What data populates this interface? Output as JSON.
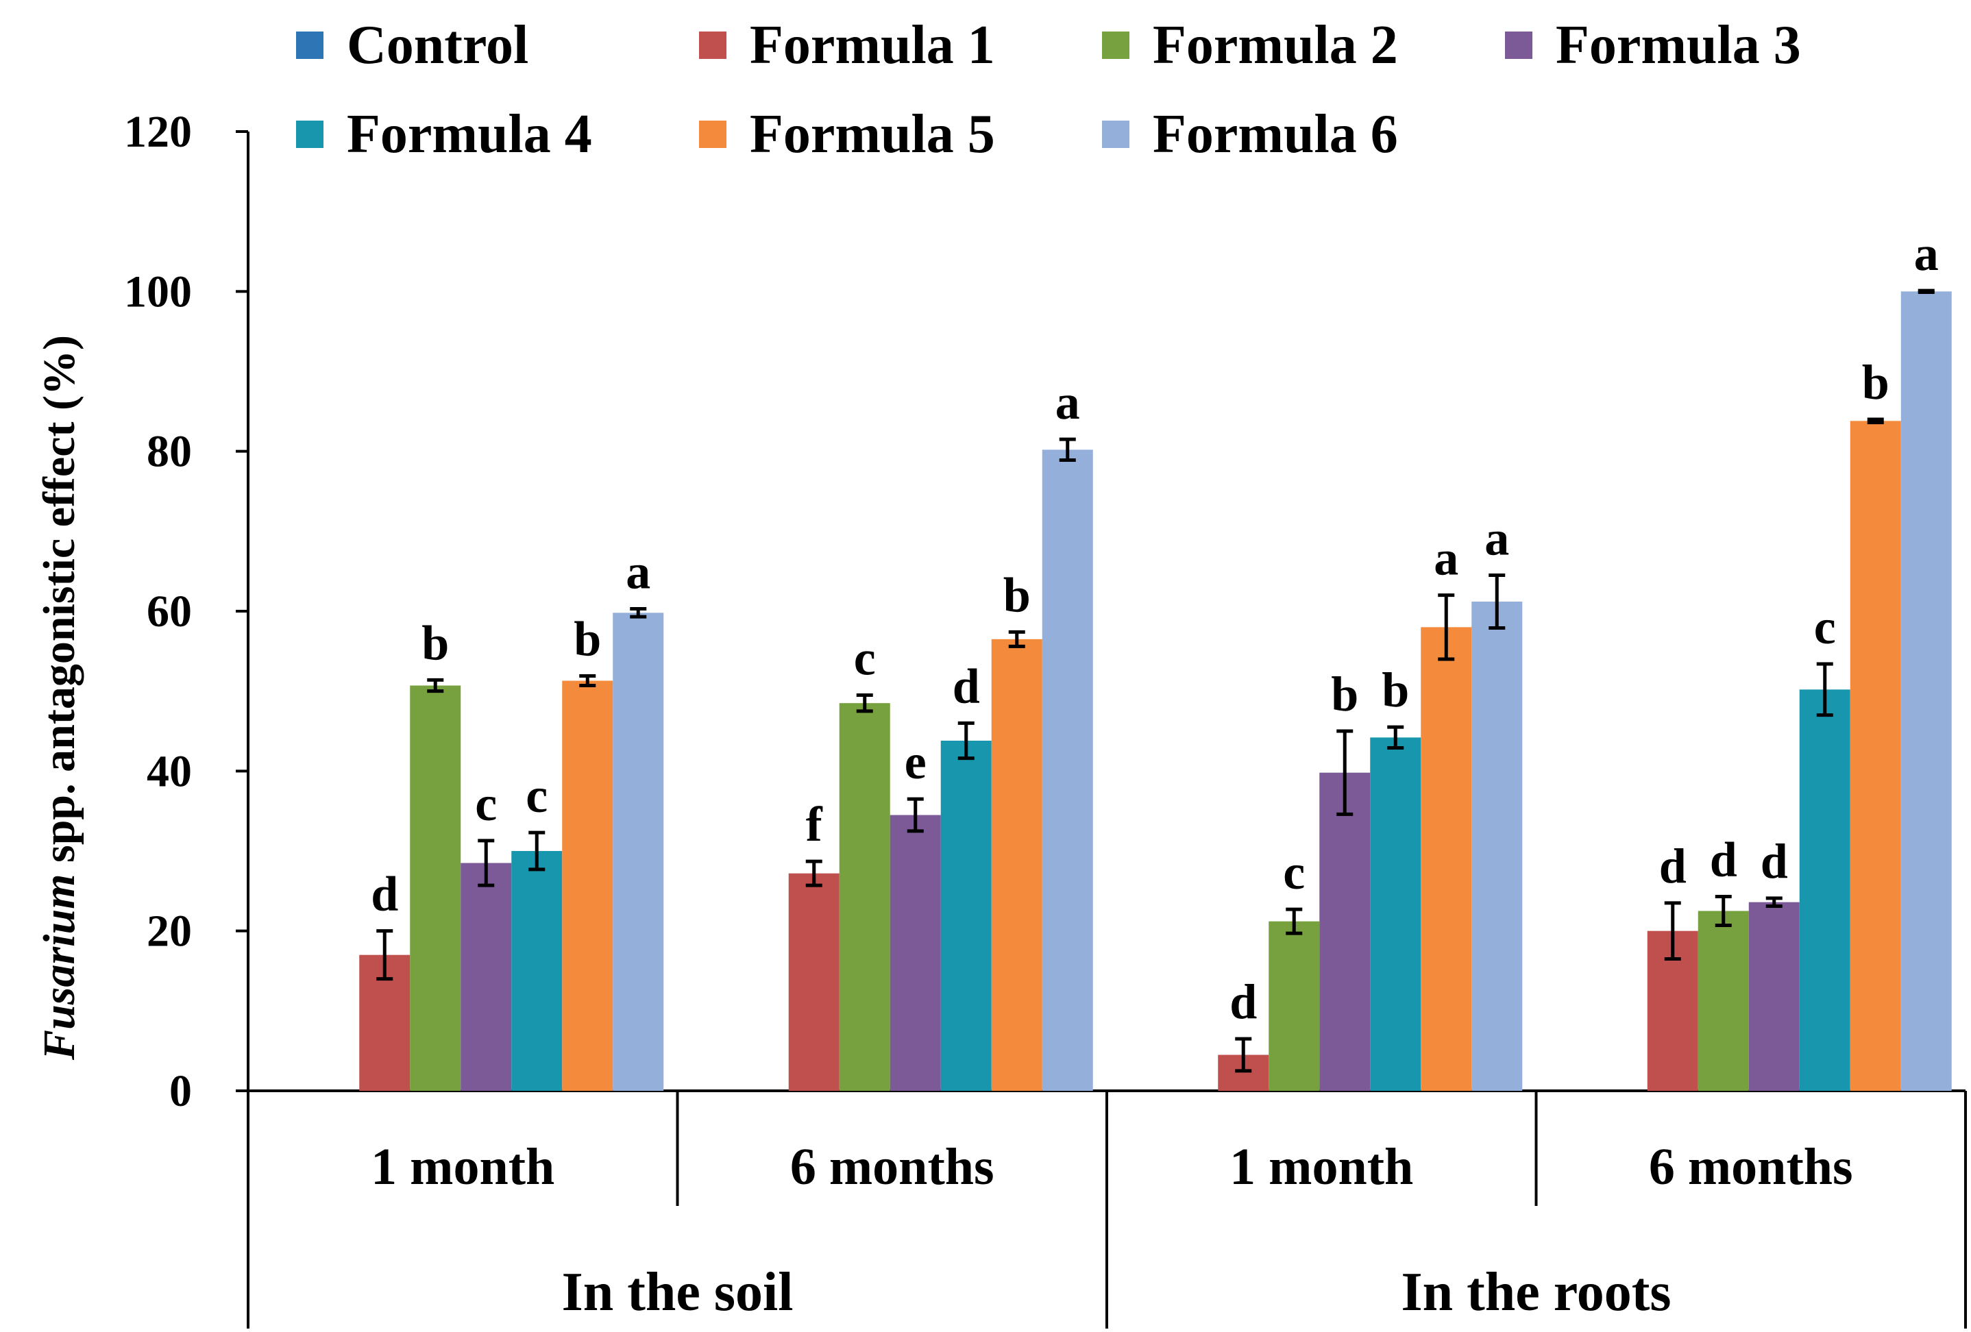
{
  "chart_data": {
    "type": "bar",
    "title": "",
    "ylabel_italic": "Fusarium",
    "ylabel_rest": " spp. antagonistic effect (%)",
    "xlabel": "",
    "ylim": [
      0,
      120
    ],
    "yticks": [
      0,
      20,
      40,
      60,
      80,
      100,
      120
    ],
    "grid": false,
    "legend_position": "top",
    "categories": [
      "1 month",
      "6 months",
      "1 month",
      "6 months"
    ],
    "groups": [
      {
        "label": "In the soil",
        "span": [
          0,
          1
        ]
      },
      {
        "label": "In the roots",
        "span": [
          2,
          3
        ]
      }
    ],
    "series": [
      {
        "name": "Control",
        "color": "#2E75B6",
        "values": [
          0,
          0,
          0,
          0
        ],
        "errors": [
          0,
          0,
          0,
          0
        ],
        "letters": [
          "",
          "",
          "",
          ""
        ]
      },
      {
        "name": "Formula 1",
        "color": "#C0504D",
        "values": [
          17,
          27.2,
          4.5,
          20
        ],
        "errors": [
          3,
          1.5,
          2,
          3.5
        ],
        "letters": [
          "d",
          "f",
          "d",
          "d"
        ]
      },
      {
        "name": "Formula 2",
        "color": "#77A03E",
        "values": [
          50.7,
          48.5,
          21.2,
          22.5
        ],
        "errors": [
          0.7,
          1,
          1.5,
          1.8
        ],
        "letters": [
          "b",
          "c",
          "c",
          "d"
        ]
      },
      {
        "name": "Formula 3",
        "color": "#7B5A97",
        "values": [
          28.5,
          34.5,
          39.8,
          23.6
        ],
        "errors": [
          2.8,
          2,
          5.2,
          0.5
        ],
        "letters": [
          "c",
          "e",
          "b",
          "d"
        ]
      },
      {
        "name": "Formula 4",
        "color": "#1896AE",
        "values": [
          30,
          43.8,
          44.2,
          50.2
        ],
        "errors": [
          2.3,
          2.2,
          1.3,
          3.2
        ],
        "letters": [
          "c",
          "d",
          "b",
          "c"
        ]
      },
      {
        "name": "Formula 5",
        "color": "#F48A3C",
        "values": [
          51.3,
          56.5,
          58,
          83.8
        ],
        "errors": [
          0.6,
          0.9,
          4,
          0.2
        ],
        "letters": [
          "b",
          "b",
          "a",
          "b"
        ]
      },
      {
        "name": "Formula 6",
        "color": "#93AFDA",
        "values": [
          59.8,
          80.2,
          61.2,
          100
        ],
        "errors": [
          0.5,
          1.3,
          3.3,
          0.1
        ],
        "letters": [
          "a",
          "a",
          "a",
          "a"
        ]
      }
    ]
  }
}
